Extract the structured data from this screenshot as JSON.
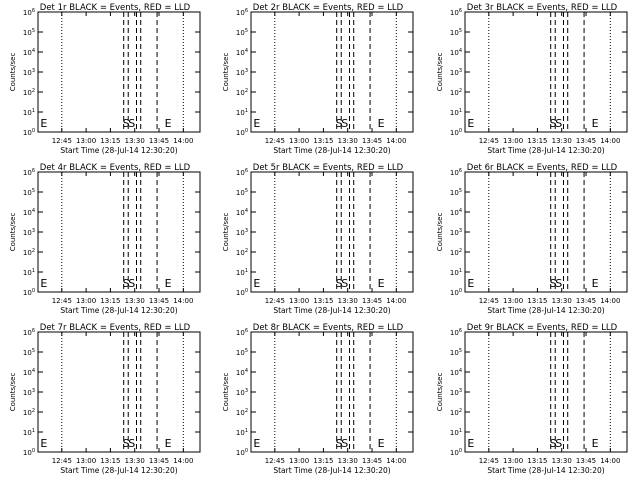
{
  "chart_data": [
    {
      "type": "line",
      "title": "Det 1r BLACK = Events, RED = LLD",
      "xlabel": "Start Time (28-Jul-14 12:30:20)",
      "ylabel": "Counts/sec",
      "x_ticks": [
        "12:45",
        "13:00",
        "13:15",
        "13:30",
        "13:45",
        "14:00"
      ],
      "x_range_min": [
        0,
        100
      ],
      "y_ticks": [
        "10^0",
        "10^1",
        "10^2",
        "10^3",
        "10^4",
        "10^5",
        "10^6"
      ],
      "ylim": [
        1,
        1000000
      ],
      "yscale": "log",
      "dotted_lines_min": [
        14.7,
        89.7
      ],
      "dashed_lines_min": [
        52.9,
        55.7,
        60.8,
        63.4,
        73.5
      ],
      "markers": [
        {
          "label": "E",
          "x_min": 1.5
        },
        {
          "label": "S",
          "x_min": 52.2
        },
        {
          "label": "S",
          "x_min": 55.7
        },
        {
          "label": "E",
          "x_min": 78.2
        }
      ],
      "series": []
    },
    {
      "type": "line",
      "title": "Det 2r BLACK = Events, RED = LLD",
      "xlabel": "Start Time (28-Jul-14 12:30:20)",
      "ylabel": "Counts/sec",
      "x_ticks": [
        "12:45",
        "13:00",
        "13:15",
        "13:30",
        "13:45",
        "14:00"
      ],
      "x_range_min": [
        0,
        100
      ],
      "y_ticks": [
        "10^0",
        "10^1",
        "10^2",
        "10^3",
        "10^4",
        "10^5",
        "10^6"
      ],
      "ylim": [
        1,
        1000000
      ],
      "yscale": "log",
      "dotted_lines_min": [
        14.7,
        89.7
      ],
      "dashed_lines_min": [
        52.9,
        55.7,
        60.8,
        63.4,
        73.5
      ],
      "markers": [
        {
          "label": "E",
          "x_min": 1.5
        },
        {
          "label": "S",
          "x_min": 52.2
        },
        {
          "label": "S",
          "x_min": 55.7
        },
        {
          "label": "E",
          "x_min": 78.2
        }
      ],
      "series": []
    },
    {
      "type": "line",
      "title": "Det 3r BLACK = Events, RED = LLD",
      "xlabel": "Start Time (28-Jul-14 12:30:20)",
      "ylabel": "Counts/sec",
      "x_ticks": [
        "12:45",
        "13:00",
        "13:15",
        "13:30",
        "13:45",
        "14:00"
      ],
      "x_range_min": [
        0,
        100
      ],
      "y_ticks": [
        "10^0",
        "10^1",
        "10^2",
        "10^3",
        "10^4",
        "10^5",
        "10^6"
      ],
      "ylim": [
        1,
        1000000
      ],
      "yscale": "log",
      "dotted_lines_min": [
        14.7,
        89.7
      ],
      "dashed_lines_min": [
        52.9,
        55.7,
        60.8,
        63.4,
        73.5
      ],
      "markers": [
        {
          "label": "E",
          "x_min": 1.5
        },
        {
          "label": "S",
          "x_min": 52.2
        },
        {
          "label": "S",
          "x_min": 55.7
        },
        {
          "label": "E",
          "x_min": 78.2
        }
      ],
      "series": []
    },
    {
      "type": "line",
      "title": "Det 4r BLACK = Events, RED = LLD",
      "xlabel": "Start Time (28-Jul-14 12:30:20)",
      "ylabel": "Counts/sec",
      "x_ticks": [
        "12:45",
        "13:00",
        "13:15",
        "13:30",
        "13:45",
        "14:00"
      ],
      "x_range_min": [
        0,
        100
      ],
      "y_ticks": [
        "10^0",
        "10^1",
        "10^2",
        "10^3",
        "10^4",
        "10^5",
        "10^6"
      ],
      "ylim": [
        1,
        1000000
      ],
      "yscale": "log",
      "dotted_lines_min": [
        14.7,
        89.7
      ],
      "dashed_lines_min": [
        52.9,
        55.7,
        60.8,
        63.4,
        73.5
      ],
      "markers": [
        {
          "label": "E",
          "x_min": 1.5
        },
        {
          "label": "S",
          "x_min": 52.2
        },
        {
          "label": "S",
          "x_min": 55.7
        },
        {
          "label": "E",
          "x_min": 78.2
        }
      ],
      "series": []
    },
    {
      "type": "line",
      "title": "Det 5r BLACK = Events, RED = LLD",
      "xlabel": "Start Time (28-Jul-14 12:30:20)",
      "ylabel": "Counts/sec",
      "x_ticks": [
        "12:45",
        "13:00",
        "13:15",
        "13:30",
        "13:45",
        "14:00"
      ],
      "x_range_min": [
        0,
        100
      ],
      "y_ticks": [
        "10^0",
        "10^1",
        "10^2",
        "10^3",
        "10^4",
        "10^5",
        "10^6"
      ],
      "ylim": [
        1,
        1000000
      ],
      "yscale": "log",
      "dotted_lines_min": [
        14.7,
        89.7
      ],
      "dashed_lines_min": [
        52.9,
        55.7,
        60.8,
        63.4,
        73.5
      ],
      "markers": [
        {
          "label": "E",
          "x_min": 1.5
        },
        {
          "label": "S",
          "x_min": 52.2
        },
        {
          "label": "S",
          "x_min": 55.7
        },
        {
          "label": "E",
          "x_min": 78.2
        }
      ],
      "series": []
    },
    {
      "type": "line",
      "title": "Det 6r BLACK = Events, RED = LLD",
      "xlabel": "Start Time (28-Jul-14 12:30:20)",
      "ylabel": "Counts/sec",
      "x_ticks": [
        "12:45",
        "13:00",
        "13:15",
        "13:30",
        "13:45",
        "14:00"
      ],
      "x_range_min": [
        0,
        100
      ],
      "y_ticks": [
        "10^0",
        "10^1",
        "10^2",
        "10^3",
        "10^4",
        "10^5",
        "10^6"
      ],
      "ylim": [
        1,
        1000000
      ],
      "yscale": "log",
      "dotted_lines_min": [
        14.7,
        89.7
      ],
      "dashed_lines_min": [
        52.9,
        55.7,
        60.8,
        63.4,
        73.5
      ],
      "markers": [
        {
          "label": "E",
          "x_min": 1.5
        },
        {
          "label": "S",
          "x_min": 52.2
        },
        {
          "label": "S",
          "x_min": 55.7
        },
        {
          "label": "E",
          "x_min": 78.2
        }
      ],
      "series": []
    },
    {
      "type": "line",
      "title": "Det 7r BLACK = Events, RED = LLD",
      "xlabel": "Start Time (28-Jul-14 12:30:20)",
      "ylabel": "Counts/sec",
      "x_ticks": [
        "12:45",
        "13:00",
        "13:15",
        "13:30",
        "13:45",
        "14:00"
      ],
      "x_range_min": [
        0,
        100
      ],
      "y_ticks": [
        "10^0",
        "10^1",
        "10^2",
        "10^3",
        "10^4",
        "10^5",
        "10^6"
      ],
      "ylim": [
        1,
        1000000
      ],
      "yscale": "log",
      "dotted_lines_min": [
        14.7,
        89.7
      ],
      "dashed_lines_min": [
        52.9,
        55.7,
        60.8,
        63.4,
        73.5
      ],
      "markers": [
        {
          "label": "E",
          "x_min": 1.5
        },
        {
          "label": "S",
          "x_min": 52.2
        },
        {
          "label": "S",
          "x_min": 55.7
        },
        {
          "label": "E",
          "x_min": 78.2
        }
      ],
      "series": []
    },
    {
      "type": "line",
      "title": "Det 8r BLACK = Events, RED = LLD",
      "xlabel": "Start Time (28-Jul-14 12:30:20)",
      "ylabel": "Counts/sec",
      "x_ticks": [
        "12:45",
        "13:00",
        "13:15",
        "13:30",
        "13:45",
        "14:00"
      ],
      "x_range_min": [
        0,
        100
      ],
      "y_ticks": [
        "10^0",
        "10^1",
        "10^2",
        "10^3",
        "10^4",
        "10^5",
        "10^6"
      ],
      "ylim": [
        1,
        1000000
      ],
      "yscale": "log",
      "dotted_lines_min": [
        14.7,
        89.7
      ],
      "dashed_lines_min": [
        52.9,
        55.7,
        60.8,
        63.4,
        73.5
      ],
      "markers": [
        {
          "label": "E",
          "x_min": 1.5
        },
        {
          "label": "S",
          "x_min": 52.2
        },
        {
          "label": "S",
          "x_min": 55.7
        },
        {
          "label": "E",
          "x_min": 78.2
        }
      ],
      "series": []
    },
    {
      "type": "line",
      "title": "Det 9r BLACK = Events, RED = LLD",
      "xlabel": "Start Time (28-Jul-14 12:30:20)",
      "ylabel": "Counts/sec",
      "x_ticks": [
        "12:45",
        "13:00",
        "13:15",
        "13:30",
        "13:45",
        "14:00"
      ],
      "x_range_min": [
        0,
        100
      ],
      "y_ticks": [
        "10^0",
        "10^1",
        "10^2",
        "10^3",
        "10^4",
        "10^5",
        "10^6"
      ],
      "ylim": [
        1,
        1000000
      ],
      "yscale": "log",
      "dotted_lines_min": [
        14.7,
        89.7
      ],
      "dashed_lines_min": [
        52.9,
        55.7,
        60.8,
        63.4,
        73.5
      ],
      "markers": [
        {
          "label": "E",
          "x_min": 1.5
        },
        {
          "label": "S",
          "x_min": 52.2
        },
        {
          "label": "S",
          "x_min": 55.7
        },
        {
          "label": "E",
          "x_min": 78.2
        }
      ],
      "series": []
    }
  ]
}
